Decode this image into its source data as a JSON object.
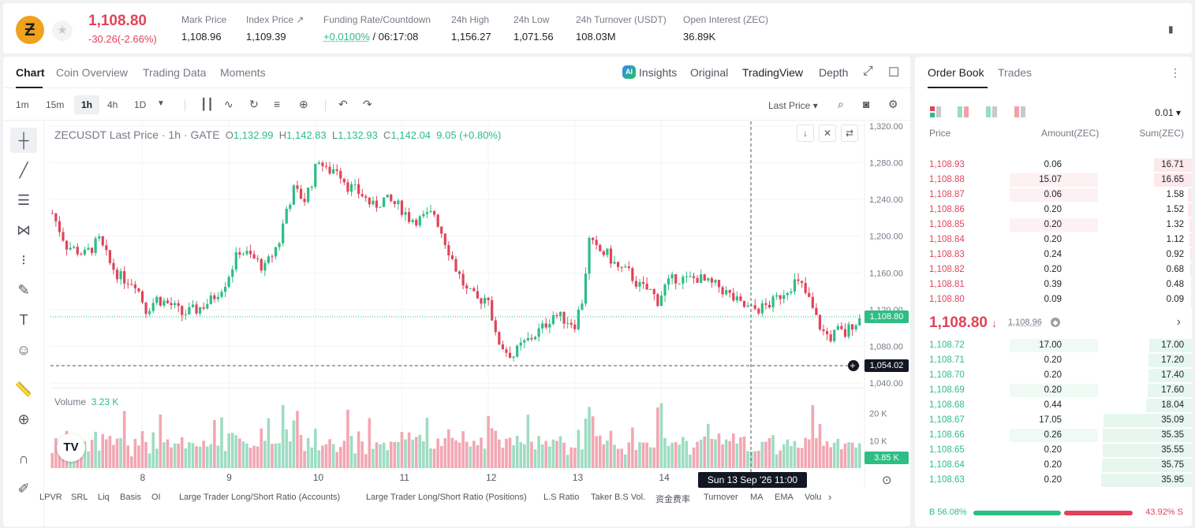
{
  "header": {
    "last_price": "1,108.80",
    "change": "-30.26(-2.66%)",
    "stats": [
      {
        "label": "Mark Price",
        "value": "1,108.96"
      },
      {
        "label": "Index Price ↗",
        "value": "1,109.39"
      },
      {
        "label": "Funding Rate/Countdown",
        "rate": "+0.0100%",
        "countdown": "/ 06:17:08"
      },
      {
        "label": "24h High",
        "value": "1,156.27"
      },
      {
        "label": "24h Low",
        "value": "1,071.56"
      },
      {
        "label": "24h Turnover (USDT)",
        "value": "108.03M"
      },
      {
        "label": "Open Interest (ZEC)",
        "value": "36.89K"
      }
    ]
  },
  "chart_tabs": [
    "Chart",
    "Coin Overview",
    "Trading Data",
    "Moments"
  ],
  "chart_views": [
    "Insights",
    "Original",
    "TradingView",
    "Depth"
  ],
  "intervals": [
    "1m",
    "15m",
    "1h",
    "4h",
    "1D"
  ],
  "price_type": "Last Price",
  "legend": {
    "symbol": "ZECUSDT Last Price · 1h · GATE",
    "o_label": "O",
    "o": "1,132.99",
    "h_label": "H",
    "h": "1,142.83",
    "l_label": "L",
    "l": "1,132.93",
    "c_label": "C",
    "c": "1,142.04",
    "change": "9.05 (+0.80%)"
  },
  "volume_legend": {
    "label": "Volume",
    "value": "3.23 K"
  },
  "price_tags": {
    "last": "1,108.80",
    "crosshair": "1,054.02",
    "volume": "3.85 K"
  },
  "crosshair_time": "Sun 13 Sep '26   11:00",
  "indicators": [
    "LPVR",
    "SRL",
    "Liq",
    "Basis",
    "OI",
    "Large Trader Long/Short Ratio (Accounts)",
    "Large Trader Long/Short Ratio (Positions)",
    "L.S Ratio",
    "Taker B.S Vol.",
    "资金费率",
    "Turnover",
    "MA",
    "EMA",
    "Volu"
  ],
  "chart_data": {
    "type": "candlestick",
    "symbol": "ZECUSDT",
    "interval": "1h",
    "y_ticks": [
      "1,320.00",
      "1,280.00",
      "1,240.00",
      "1,200.00",
      "1,160.00",
      "1,120.00",
      "1,080.00",
      "1,040.00"
    ],
    "ylim": [
      1035,
      1325
    ],
    "x_ticks": [
      "8",
      "9",
      "10",
      "11",
      "12",
      "13",
      "14"
    ],
    "x_tick_index": [
      25,
      49,
      73,
      97,
      121,
      145,
      169
    ],
    "volume_ticks": [
      "20 K",
      "10 K"
    ],
    "volume_max": 28,
    "close_path": [
      [
        0,
        1225
      ],
      [
        4,
        1190
      ],
      [
        9,
        1180
      ],
      [
        13,
        1195
      ],
      [
        16,
        1170
      ],
      [
        19,
        1155
      ],
      [
        23,
        1150
      ],
      [
        26,
        1120
      ],
      [
        29,
        1132
      ],
      [
        33,
        1125
      ],
      [
        36,
        1115
      ],
      [
        40,
        1120
      ],
      [
        44,
        1130
      ],
      [
        48,
        1150
      ],
      [
        52,
        1185
      ],
      [
        56,
        1175
      ],
      [
        59,
        1165
      ],
      [
        61,
        1180
      ],
      [
        63,
        1195
      ],
      [
        65,
        1230
      ],
      [
        67,
        1250
      ],
      [
        70,
        1240
      ],
      [
        72,
        1260
      ],
      [
        74,
        1285
      ],
      [
        76,
        1270
      ],
      [
        79,
        1275
      ],
      [
        82,
        1255
      ],
      [
        86,
        1245
      ],
      [
        89,
        1232
      ],
      [
        92,
        1240
      ],
      [
        95,
        1235
      ],
      [
        97,
        1230
      ],
      [
        99,
        1220
      ],
      [
        102,
        1218
      ],
      [
        106,
        1225
      ],
      [
        108,
        1205
      ],
      [
        110,
        1185
      ],
      [
        112,
        1165
      ],
      [
        115,
        1140
      ],
      [
        118,
        1130
      ],
      [
        121,
        1135
      ],
      [
        123,
        1090
      ],
      [
        126,
        1075
      ],
      [
        128,
        1070
      ],
      [
        130,
        1080
      ],
      [
        133,
        1090
      ],
      [
        136,
        1100
      ],
      [
        139,
        1115
      ],
      [
        142,
        1110
      ],
      [
        145,
        1105
      ],
      [
        147,
        1130
      ],
      [
        149,
        1195
      ],
      [
        151,
        1185
      ],
      [
        154,
        1180
      ],
      [
        157,
        1165
      ],
      [
        160,
        1160
      ],
      [
        163,
        1145
      ],
      [
        166,
        1140
      ],
      [
        168,
        1130
      ],
      [
        170,
        1145
      ],
      [
        173,
        1155
      ],
      [
        176,
        1152
      ],
      [
        179,
        1155
      ],
      [
        182,
        1148
      ],
      [
        185,
        1145
      ],
      [
        188,
        1135
      ],
      [
        191,
        1125
      ],
      [
        194,
        1120
      ],
      [
        197,
        1122
      ],
      [
        200,
        1128
      ],
      [
        203,
        1140
      ],
      [
        206,
        1150
      ],
      [
        208,
        1145
      ],
      [
        210,
        1130
      ],
      [
        212,
        1110
      ],
      [
        214,
        1095
      ],
      [
        216,
        1090
      ],
      [
        218,
        1097
      ],
      [
        220,
        1093
      ],
      [
        222,
        1105
      ],
      [
        224,
        1109
      ]
    ]
  },
  "orderbook": {
    "tabs": [
      "Order Book",
      "Trades"
    ],
    "precision": "0.01",
    "headers": [
      "Price",
      "Amount(ZEC)",
      "Sum(ZEC)"
    ],
    "asks": [
      {
        "price": "1,108.93",
        "amount": "0.06",
        "sum": "16.71",
        "sum_frac": 0.42,
        "amt_frac": 0.0
      },
      {
        "price": "1,108.88",
        "amount": "15.07",
        "sum": "16.65",
        "sum_frac": 0.42,
        "amt_frac": 0.38
      },
      {
        "price": "1,108.87",
        "amount": "0.06",
        "sum": "1.58",
        "sum_frac": 0.04,
        "amt_frac": 0.38
      },
      {
        "price": "1,108.86",
        "amount": "0.20",
        "sum": "1.52",
        "sum_frac": 0.04,
        "amt_frac": 0.0
      },
      {
        "price": "1,108.85",
        "amount": "0.20",
        "sum": "1.32",
        "sum_frac": 0.03,
        "amt_frac": 0.38
      },
      {
        "price": "1,108.84",
        "amount": "0.20",
        "sum": "1.12",
        "sum_frac": 0.03,
        "amt_frac": 0.0
      },
      {
        "price": "1,108.83",
        "amount": "0.24",
        "sum": "0.92",
        "sum_frac": 0.02,
        "amt_frac": 0.0
      },
      {
        "price": "1,108.82",
        "amount": "0.20",
        "sum": "0.68",
        "sum_frac": 0.02,
        "amt_frac": 0.0
      },
      {
        "price": "1,108.81",
        "amount": "0.39",
        "sum": "0.48",
        "sum_frac": 0.01,
        "amt_frac": 0.0
      },
      {
        "price": "1,108.80",
        "amount": "0.09",
        "sum": "0.09",
        "sum_frac": 0.005,
        "amt_frac": 0.0
      }
    ],
    "mid_price": "1,108.80",
    "mid_mark": "1,108.96",
    "bids": [
      {
        "price": "1,108.72",
        "amount": "17.00",
        "sum": "17.00",
        "sum_frac": 0.47,
        "amt_frac": 0.38
      },
      {
        "price": "1,108.71",
        "amount": "0.20",
        "sum": "17.20",
        "sum_frac": 0.48,
        "amt_frac": 0.0
      },
      {
        "price": "1,108.70",
        "amount": "0.20",
        "sum": "17.40",
        "sum_frac": 0.48,
        "amt_frac": 0.0
      },
      {
        "price": "1,108.69",
        "amount": "0.20",
        "sum": "17.60",
        "sum_frac": 0.49,
        "amt_frac": 0.38
      },
      {
        "price": "1,108.68",
        "amount": "0.44",
        "sum": "18.04",
        "sum_frac": 0.5,
        "amt_frac": 0.0
      },
      {
        "price": "1,108.67",
        "amount": "17.05",
        "sum": "35.09",
        "sum_frac": 0.97,
        "amt_frac": 0.0
      },
      {
        "price": "1,108.66",
        "amount": "0.26",
        "sum": "35.35",
        "sum_frac": 0.98,
        "amt_frac": 0.38
      },
      {
        "price": "1,108.65",
        "amount": "0.20",
        "sum": "35.55",
        "sum_frac": 0.98,
        "amt_frac": 0.0
      },
      {
        "price": "1,108.64",
        "amount": "0.20",
        "sum": "35.75",
        "sum_frac": 0.99,
        "amt_frac": 0.0
      },
      {
        "price": "1,108.63",
        "amount": "0.20",
        "sum": "35.95",
        "sum_frac": 1.0,
        "amt_frac": 0.0
      }
    ],
    "buy_ratio": "56.08%",
    "sell_ratio": "43.92%",
    "buy_label": "B",
    "sell_label": "S",
    "buy_frac": 0.5608
  },
  "colors": {
    "up": "#2dbd85",
    "down": "#e0445a",
    "up_vol": "#9edcc3",
    "down_vol": "#f2a7b3"
  }
}
